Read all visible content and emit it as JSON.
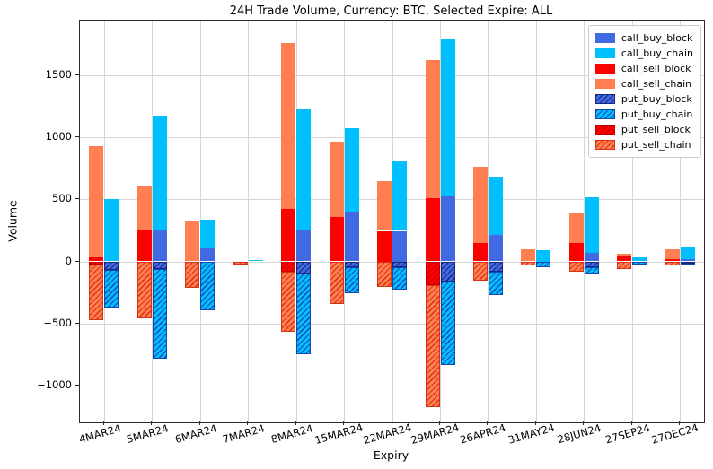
{
  "chart_data": {
    "type": "bar",
    "stacked": true,
    "grid": true,
    "legend_position": "upper right",
    "title": "24H Trade Volume, Currency: BTC, Selected Expire: ALL",
    "xlabel": "Expiry",
    "ylabel": "Volume",
    "ylim": [
      -1295,
      1937
    ],
    "yticks": [
      -1000,
      -500,
      0,
      500,
      1000,
      1500
    ],
    "ytick_labels": [
      "−1000",
      "−500",
      "0",
      "500",
      "1000",
      "1500"
    ],
    "categories": [
      "4MAR24",
      "5MAR24",
      "6MAR24",
      "7MAR24",
      "8MAR24",
      "15MAR24",
      "22MAR24",
      "29MAR24",
      "26APR24",
      "31MAY24",
      "28JUN24",
      "27SEP24",
      "27DEC24"
    ],
    "colors": {
      "block_buy": "#4169e1",
      "chain_buy": "#00bfff",
      "block_sell": "#ff0000",
      "chain_sell": "#ff7f50"
    },
    "series": [
      {
        "name": "call_sell_block",
        "group": "sell",
        "color": "#ff0000",
        "hatch": false,
        "hatch_color": null,
        "values": [
          30,
          250,
          0,
          0,
          425,
          360,
          245,
          510,
          145,
          0,
          145,
          45,
          20
        ]
      },
      {
        "name": "call_sell_chain",
        "group": "sell",
        "color": "#ff7f50",
        "hatch": false,
        "hatch_color": null,
        "values": [
          895,
          360,
          325,
          0,
          1335,
          600,
          400,
          1110,
          620,
          95,
          250,
          20,
          75
        ]
      },
      {
        "name": "put_sell_block",
        "group": "sell",
        "color": "#ff0000",
        "hatch": true,
        "hatch_color": "#c60000",
        "values": [
          -25,
          0,
          0,
          0,
          -85,
          0,
          0,
          -190,
          0,
          0,
          0,
          0,
          0
        ]
      },
      {
        "name": "put_sell_chain",
        "group": "sell",
        "color": "#ff7f50",
        "hatch": true,
        "hatch_color": "#d93212",
        "values": [
          -445,
          -460,
          -210,
          -25,
          -480,
          -340,
          -205,
          -985,
          -155,
          -30,
          -80,
          -60,
          -30
        ]
      },
      {
        "name": "call_buy_block",
        "group": "buy",
        "color": "#4169e1",
        "hatch": false,
        "hatch_color": null,
        "values": [
          0,
          250,
          105,
          0,
          250,
          400,
          245,
          520,
          215,
          0,
          70,
          0,
          15
        ]
      },
      {
        "name": "call_buy_chain",
        "group": "buy",
        "color": "#00bfff",
        "hatch": false,
        "hatch_color": null,
        "values": [
          500,
          925,
          230,
          10,
          980,
          675,
          565,
          1270,
          470,
          90,
          445,
          35,
          105
        ]
      },
      {
        "name": "put_buy_block",
        "group": "buy",
        "color": "#4169e1",
        "hatch": true,
        "hatch_color": "#14277e",
        "values": [
          -70,
          -60,
          0,
          0,
          -95,
          -50,
          -50,
          -165,
          -85,
          0,
          -45,
          0,
          -15
        ]
      },
      {
        "name": "put_buy_chain",
        "group": "buy",
        "color": "#00bfff",
        "hatch": true,
        "hatch_color": "#1646b4",
        "values": [
          -300,
          -720,
          -395,
          0,
          -650,
          -210,
          -180,
          -670,
          -185,
          -50,
          -50,
          -25,
          -10
        ]
      }
    ],
    "legend_order": [
      "call_buy_block",
      "call_buy_chain",
      "call_sell_block",
      "call_sell_chain",
      "put_buy_block",
      "put_buy_chain",
      "put_sell_block",
      "put_sell_chain"
    ]
  }
}
